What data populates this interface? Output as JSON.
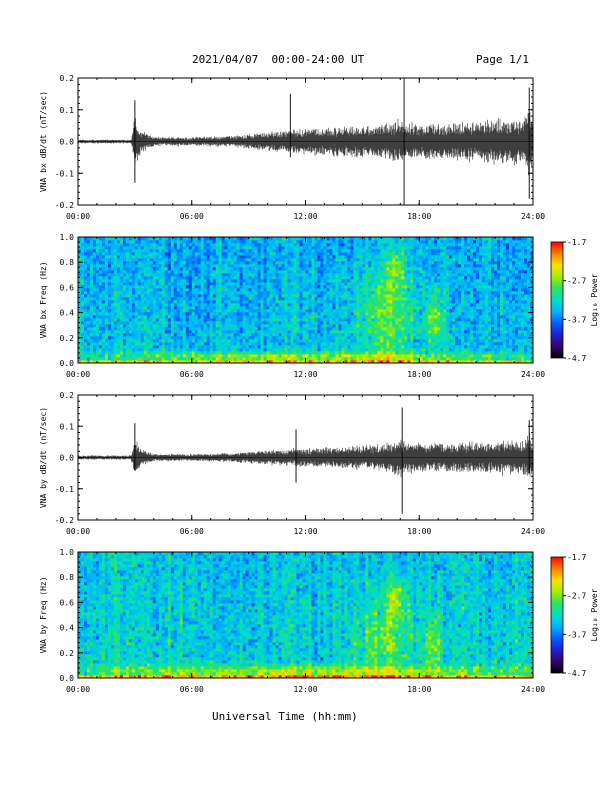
{
  "header": {
    "title": "2021/04/07  00:00-24:00 UT",
    "page": "Page 1/1"
  },
  "x_axis_title": "Universal Time (hh:mm)",
  "colorbar": {
    "label": "Log₁₀ Power",
    "ticks": [
      "-1.7",
      "-2.7",
      "-3.7",
      "-4.7"
    ],
    "colors": [
      "#000000",
      "#3a006e",
      "#2020d0",
      "#0060ff",
      "#00b4ff",
      "#00e0c0",
      "#30e060",
      "#a0f000",
      "#ffe000",
      "#ff8000",
      "#ff0000"
    ]
  },
  "chart_data": [
    {
      "type": "line",
      "ylabel": "VNA bx dB/dt (nT/sec)",
      "xlim": [
        0,
        24
      ],
      "ylim": [
        -0.2,
        0.2
      ],
      "x_ticks": [
        "00:00",
        "06:00",
        "12:00",
        "18:00",
        "24:00"
      ],
      "y_ticks": [
        "0.2",
        "0.1",
        "0.0",
        "-0.1",
        "-0.2"
      ],
      "envelope": {
        "x_hours": [
          0,
          2.8,
          3.0,
          3.3,
          4,
          6,
          8,
          10,
          12,
          14,
          16,
          17.0,
          17.3,
          18,
          20,
          22,
          23.5,
          23.8,
          24
        ],
        "amplitude": [
          0.005,
          0.005,
          0.07,
          0.035,
          0.012,
          0.012,
          0.015,
          0.025,
          0.035,
          0.04,
          0.045,
          0.06,
          0.05,
          0.045,
          0.05,
          0.06,
          0.06,
          0.1,
          0.05
        ]
      },
      "spikes": [
        {
          "x_hour": 3.0,
          "min": -0.13,
          "max": 0.13
        },
        {
          "x_hour": 11.2,
          "min": -0.05,
          "max": 0.15
        },
        {
          "x_hour": 17.2,
          "min": -0.2,
          "max": 0.2
        },
        {
          "x_hour": 23.8,
          "min": -0.18,
          "max": 0.17
        }
      ]
    },
    {
      "type": "heatmap",
      "ylabel": "VNA bx Freq (Hz)",
      "xlim": [
        0,
        24
      ],
      "ylim": [
        0,
        1.0
      ],
      "clim": [
        -4.7,
        -1.7
      ],
      "x_ticks": [
        "00:00",
        "06:00",
        "12:00",
        "18:00",
        "24:00"
      ],
      "y_ticks": [
        "1.0",
        "0.8",
        "0.6",
        "0.4",
        "0.2",
        "0.0"
      ],
      "background_level": -3.5,
      "features": [
        {
          "x_hour": 16.3,
          "f_hz": 0.4,
          "dx_hours": 1.5,
          "df_hz": 0.35,
          "level": -2.9
        },
        {
          "x_hour": 16.8,
          "f_hz": 0.75,
          "dx_hours": 0.4,
          "df_hz": 0.15,
          "level": -2.8
        },
        {
          "x_hour": 18.8,
          "f_hz": 0.35,
          "dx_hours": 0.4,
          "df_hz": 0.2,
          "level": -2.8
        },
        {
          "x_hour": 12.0,
          "f_hz": 0.05,
          "dx_hours": 12.0,
          "df_hz": 0.04,
          "level": -2.7
        }
      ]
    },
    {
      "type": "line",
      "ylabel": "VNA by dB/dt (nT/sec)",
      "xlim": [
        0,
        24
      ],
      "ylim": [
        -0.2,
        0.2
      ],
      "x_ticks": [
        "00:00",
        "06:00",
        "12:00",
        "18:00",
        "24:00"
      ],
      "y_ticks": [
        "0.2",
        "0.1",
        "0.0",
        "-0.1",
        "-0.2"
      ],
      "envelope": {
        "x_hours": [
          0,
          2.8,
          3.0,
          3.3,
          4,
          6,
          8,
          10,
          12,
          14,
          16,
          17.0,
          17.3,
          18,
          20,
          22,
          23.5,
          23.8,
          24
        ],
        "amplitude": [
          0.006,
          0.006,
          0.05,
          0.025,
          0.01,
          0.01,
          0.012,
          0.02,
          0.025,
          0.03,
          0.035,
          0.05,
          0.04,
          0.04,
          0.04,
          0.045,
          0.045,
          0.07,
          0.04
        ]
      },
      "spikes": [
        {
          "x_hour": 3.0,
          "min": -0.04,
          "max": 0.11
        },
        {
          "x_hour": 11.5,
          "min": -0.08,
          "max": 0.09
        },
        {
          "x_hour": 17.1,
          "min": -0.18,
          "max": 0.16
        },
        {
          "x_hour": 23.8,
          "min": -0.05,
          "max": 0.12
        }
      ]
    },
    {
      "type": "heatmap",
      "ylabel": "VNA by Freq (Hz)",
      "xlim": [
        0,
        24
      ],
      "ylim": [
        0,
        1.0
      ],
      "clim": [
        -4.7,
        -1.7
      ],
      "x_ticks": [
        "00:00",
        "06:00",
        "12:00",
        "18:00",
        "24:00"
      ],
      "y_ticks": [
        "1.0",
        "0.8",
        "0.6",
        "0.4",
        "0.2",
        "0.0"
      ],
      "background_level": -3.4,
      "features": [
        {
          "x_hour": 16.3,
          "f_hz": 0.35,
          "dx_hours": 1.5,
          "df_hz": 0.35,
          "level": -2.9
        },
        {
          "x_hour": 16.8,
          "f_hz": 0.65,
          "dx_hours": 0.4,
          "df_hz": 0.15,
          "level": -2.8
        },
        {
          "x_hour": 18.8,
          "f_hz": 0.3,
          "dx_hours": 0.4,
          "df_hz": 0.2,
          "level": -2.8
        },
        {
          "x_hour": 12.0,
          "f_hz": 0.05,
          "dx_hours": 12.0,
          "df_hz": 0.05,
          "level": -2.6
        }
      ]
    }
  ]
}
